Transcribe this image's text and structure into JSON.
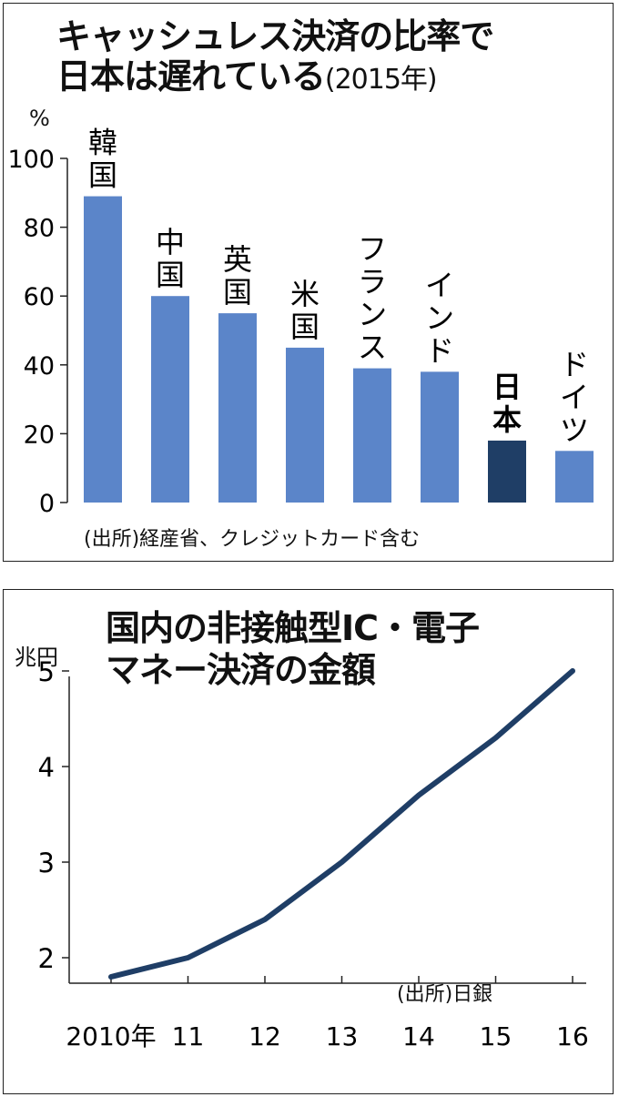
{
  "charts": [
    {
      "title_line1": "キャッシュレス決済の比率で",
      "title_line2": "日本は遅れている",
      "title_note": "(2015年)",
      "unit": "%",
      "source": "(出所)経産省、クレジットカード含む"
    },
    {
      "title_line1": "国内の非接触型IC・電子",
      "title_line2": "マネー決済の金額",
      "unit": "兆円",
      "source": "(出所)日銀"
    }
  ],
  "chart_data": [
    {
      "type": "bar",
      "title": "キャッシュレス決済の比率で日本は遅れている(2015年)",
      "ylabel": "%",
      "ylim": [
        0,
        100
      ],
      "yticks": [
        0,
        20,
        40,
        60,
        80,
        100
      ],
      "categories": [
        "韓国",
        "中国",
        "英国",
        "米国",
        "フランス",
        "インド",
        "日本",
        "ドイツ"
      ],
      "values": [
        89,
        60,
        55,
        45,
        39,
        38,
        18,
        15
      ],
      "highlight": "日本",
      "colors": {
        "bar": "#5b85c9",
        "highlight": "#1f3e66"
      },
      "grid": false
    },
    {
      "type": "line",
      "title": "国内の非接触型IC・電子マネー決済の金額",
      "ylabel": "兆円",
      "x": [
        "2010年",
        "11",
        "12",
        "13",
        "14",
        "15",
        "16"
      ],
      "values": [
        1.8,
        2.0,
        2.4,
        3.0,
        3.7,
        4.3,
        5.0
      ],
      "ylim": [
        1.7,
        5.2
      ],
      "yticks": [
        2,
        3,
        4,
        5
      ],
      "colors": {
        "line": "#1f3e66"
      },
      "grid": false
    }
  ]
}
